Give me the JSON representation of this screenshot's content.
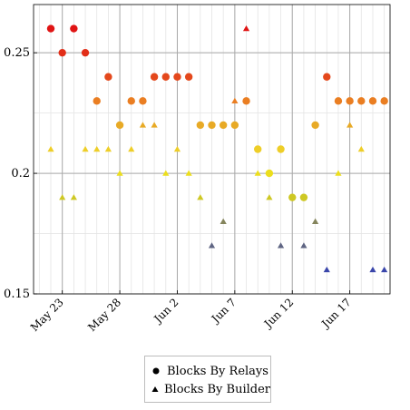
{
  "chart_data": {
    "type": "scatter",
    "title": "",
    "xlabel": "",
    "ylabel": "",
    "x_tick_labels": [
      "May 23",
      "May 28",
      "Jun 2",
      "Jun 7",
      "Jun 12",
      "Jun 17"
    ],
    "x_tick_dates": [
      "2023-05-23",
      "2023-05-28",
      "2023-06-02",
      "2023-06-07",
      "2023-06-12",
      "2023-06-17"
    ],
    "xlim": [
      "2023-05-21",
      "2023-06-20"
    ],
    "y_tick_labels": [
      "0.15",
      "0.2",
      "0.25"
    ],
    "y_ticks": [
      0.15,
      0.2,
      0.25
    ],
    "ylim": [
      0.15,
      0.27
    ],
    "grid": true,
    "color_scale": "value-mapped: blue (low) - yellow - orange - red (high)",
    "legend_position": "below",
    "series": [
      {
        "name": "Blocks By Relays",
        "marker": "circle",
        "points": [
          {
            "x": "2023-05-22",
            "y": 0.26
          },
          {
            "x": "2023-05-23",
            "y": 0.25
          },
          {
            "x": "2023-05-24",
            "y": 0.26
          },
          {
            "x": "2023-05-25",
            "y": 0.25
          },
          {
            "x": "2023-05-26",
            "y": 0.23
          },
          {
            "x": "2023-05-27",
            "y": 0.24
          },
          {
            "x": "2023-05-28",
            "y": 0.22
          },
          {
            "x": "2023-05-29",
            "y": 0.23
          },
          {
            "x": "2023-05-30",
            "y": 0.23
          },
          {
            "x": "2023-05-31",
            "y": 0.24
          },
          {
            "x": "2023-06-01",
            "y": 0.24
          },
          {
            "x": "2023-06-02",
            "y": 0.24
          },
          {
            "x": "2023-06-03",
            "y": 0.24
          },
          {
            "x": "2023-06-04",
            "y": 0.22
          },
          {
            "x": "2023-06-05",
            "y": 0.22
          },
          {
            "x": "2023-06-06",
            "y": 0.22
          },
          {
            "x": "2023-06-07",
            "y": 0.22
          },
          {
            "x": "2023-06-08",
            "y": 0.23
          },
          {
            "x": "2023-06-09",
            "y": 0.21
          },
          {
            "x": "2023-06-10",
            "y": 0.2
          },
          {
            "x": "2023-06-11",
            "y": 0.21
          },
          {
            "x": "2023-06-12",
            "y": 0.19
          },
          {
            "x": "2023-06-13",
            "y": 0.19
          },
          {
            "x": "2023-06-14",
            "y": 0.22
          },
          {
            "x": "2023-06-15",
            "y": 0.24
          },
          {
            "x": "2023-06-16",
            "y": 0.23
          },
          {
            "x": "2023-06-17",
            "y": 0.23
          },
          {
            "x": "2023-06-18",
            "y": 0.23
          },
          {
            "x": "2023-06-19",
            "y": 0.23
          },
          {
            "x": "2023-06-20",
            "y": 0.23
          }
        ]
      },
      {
        "name": "Blocks By Builder",
        "marker": "triangle",
        "points": [
          {
            "x": "2023-05-22",
            "y": 0.21
          },
          {
            "x": "2023-05-23",
            "y": 0.19
          },
          {
            "x": "2023-05-24",
            "y": 0.19
          },
          {
            "x": "2023-05-25",
            "y": 0.21
          },
          {
            "x": "2023-05-26",
            "y": 0.21
          },
          {
            "x": "2023-05-27",
            "y": 0.21
          },
          {
            "x": "2023-05-28",
            "y": 0.2
          },
          {
            "x": "2023-05-29",
            "y": 0.21
          },
          {
            "x": "2023-05-30",
            "y": 0.22
          },
          {
            "x": "2023-05-31",
            "y": 0.22
          },
          {
            "x": "2023-06-01",
            "y": 0.2
          },
          {
            "x": "2023-06-02",
            "y": 0.21
          },
          {
            "x": "2023-06-03",
            "y": 0.2
          },
          {
            "x": "2023-06-04",
            "y": 0.19
          },
          {
            "x": "2023-06-05",
            "y": 0.17
          },
          {
            "x": "2023-06-06",
            "y": 0.18
          },
          {
            "x": "2023-06-07",
            "y": 0.23
          },
          {
            "x": "2023-06-08",
            "y": 0.26
          },
          {
            "x": "2023-06-09",
            "y": 0.2
          },
          {
            "x": "2023-06-10",
            "y": 0.19
          },
          {
            "x": "2023-06-11",
            "y": 0.17
          },
          {
            "x": "2023-06-13",
            "y": 0.17
          },
          {
            "x": "2023-06-14",
            "y": 0.18
          },
          {
            "x": "2023-06-15",
            "y": 0.16
          },
          {
            "x": "2023-06-16",
            "y": 0.2
          },
          {
            "x": "2023-06-17",
            "y": 0.22
          },
          {
            "x": "2023-06-18",
            "y": 0.21
          },
          {
            "x": "2023-06-19",
            "y": 0.16
          },
          {
            "x": "2023-06-20",
            "y": 0.16
          }
        ]
      }
    ]
  },
  "legend": {
    "items": [
      {
        "label": "Blocks By Relays",
        "marker": "circle"
      },
      {
        "label": "Blocks By Builder",
        "marker": "triangle"
      }
    ]
  }
}
